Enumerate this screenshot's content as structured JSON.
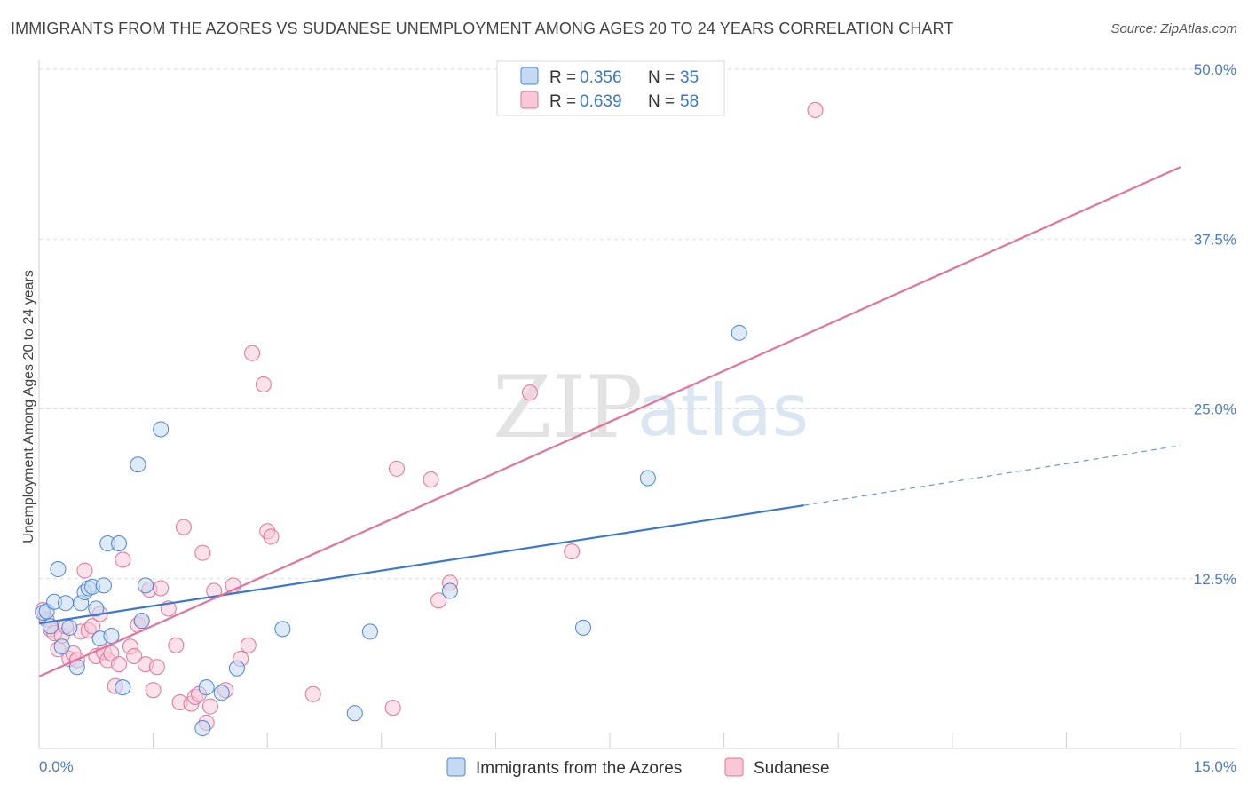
{
  "title": "IMMIGRANTS FROM THE AZORES VS SUDANESE UNEMPLOYMENT AMONG AGES 20 TO 24 YEARS CORRELATION CHART",
  "source": "Source: ZipAtlas.com",
  "colors": {
    "blue": "#4a86d9",
    "blue_fill": "#c5d9f3",
    "pink": "#e5729a",
    "pink_fill": "#f8c8d7",
    "tick_text": "#4a7cc7"
  },
  "watermark": {
    "zip": "ZIP",
    "atlas": "atlas"
  },
  "legend": {
    "r_label": "R =",
    "n_label": "N =",
    "rows": [
      {
        "r": "0.356",
        "n": "35"
      },
      {
        "r": "0.639",
        "n": "58"
      }
    ]
  },
  "bottom_legend": [
    "Immigrants from the Azores",
    "Sudanese"
  ],
  "chart_data": {
    "type": "scatter",
    "title": "IMMIGRANTS FROM THE AZORES VS SUDANESE UNEMPLOYMENT AMONG AGES 20 TO 24 YEARS CORRELATION CHART",
    "xlabel": "",
    "ylabel": "Unemployment Among Ages 20 to 24 years",
    "xlim": [
      0,
      15
    ],
    "ylim": [
      0,
      50
    ],
    "x_tick_labels": [
      "0.0%",
      "15.0%"
    ],
    "y_ticks": [
      12.5,
      25,
      37.5,
      50
    ],
    "y_tick_labels": [
      "12.5%",
      "25.0%",
      "37.5%",
      "50.0%"
    ],
    "grid": true,
    "series": [
      {
        "name": "Immigrants from the Azores",
        "r": 0.356,
        "n": 35,
        "trend": {
          "x0": 0,
          "y0": 9.2,
          "x1": 10.05,
          "y1": 17.9,
          "dash_to_x": 15,
          "dash_to_y": 22.3
        },
        "points": [
          [
            0.05,
            10.0
          ],
          [
            0.1,
            10.1
          ],
          [
            0.15,
            9.0
          ],
          [
            0.2,
            10.8
          ],
          [
            0.25,
            13.2
          ],
          [
            0.3,
            7.5
          ],
          [
            0.35,
            10.7
          ],
          [
            0.4,
            8.9
          ],
          [
            0.5,
            6.0
          ],
          [
            0.55,
            10.7
          ],
          [
            0.6,
            11.5
          ],
          [
            0.65,
            11.8
          ],
          [
            0.7,
            11.9
          ],
          [
            0.75,
            10.3
          ],
          [
            0.8,
            8.1
          ],
          [
            0.85,
            12.0
          ],
          [
            0.9,
            15.1
          ],
          [
            0.95,
            8.3
          ],
          [
            1.05,
            15.1
          ],
          [
            1.1,
            4.5
          ],
          [
            1.3,
            20.9
          ],
          [
            1.35,
            9.4
          ],
          [
            1.4,
            12.0
          ],
          [
            1.6,
            23.5
          ],
          [
            2.15,
            1.5
          ],
          [
            2.2,
            4.5
          ],
          [
            2.4,
            4.1
          ],
          [
            2.6,
            5.9
          ],
          [
            3.2,
            8.8
          ],
          [
            4.15,
            2.6
          ],
          [
            4.35,
            8.6
          ],
          [
            5.4,
            11.6
          ],
          [
            7.15,
            8.9
          ],
          [
            8.0,
            19.9
          ],
          [
            9.2,
            30.6
          ]
        ]
      },
      {
        "name": "Sudanese",
        "r": 0.639,
        "n": 58,
        "trend": {
          "x0": 0,
          "y0": 5.3,
          "x1": 15,
          "y1": 42.8
        },
        "points": [
          [
            0.05,
            10.2
          ],
          [
            0.1,
            9.5
          ],
          [
            0.15,
            8.8
          ],
          [
            0.2,
            8.5
          ],
          [
            0.25,
            7.3
          ],
          [
            0.3,
            8.3
          ],
          [
            0.35,
            9.0
          ],
          [
            0.4,
            6.6
          ],
          [
            0.45,
            7.0
          ],
          [
            0.5,
            6.5
          ],
          [
            0.55,
            8.6
          ],
          [
            0.6,
            13.1
          ],
          [
            0.65,
            8.7
          ],
          [
            0.7,
            9.0
          ],
          [
            0.75,
            6.8
          ],
          [
            0.8,
            9.9
          ],
          [
            0.85,
            7.1
          ],
          [
            0.9,
            6.5
          ],
          [
            0.95,
            7.0
          ],
          [
            1.0,
            4.6
          ],
          [
            1.05,
            6.2
          ],
          [
            1.1,
            13.9
          ],
          [
            1.2,
            7.5
          ],
          [
            1.25,
            6.8
          ],
          [
            1.3,
            9.1
          ],
          [
            1.35,
            9.4
          ],
          [
            1.4,
            6.2
          ],
          [
            1.45,
            11.7
          ],
          [
            1.5,
            4.3
          ],
          [
            1.55,
            6.0
          ],
          [
            1.6,
            11.8
          ],
          [
            1.7,
            10.3
          ],
          [
            1.8,
            7.6
          ],
          [
            1.85,
            3.4
          ],
          [
            1.9,
            16.3
          ],
          [
            2.0,
            3.3
          ],
          [
            2.05,
            3.8
          ],
          [
            2.1,
            4.0
          ],
          [
            2.15,
            14.4
          ],
          [
            2.2,
            1.9
          ],
          [
            2.25,
            3.1
          ],
          [
            2.3,
            11.6
          ],
          [
            2.45,
            4.3
          ],
          [
            2.55,
            12.0
          ],
          [
            2.65,
            6.6
          ],
          [
            2.75,
            7.6
          ],
          [
            2.8,
            29.1
          ],
          [
            2.95,
            26.8
          ],
          [
            3.0,
            16.0
          ],
          [
            3.05,
            15.6
          ],
          [
            3.6,
            4.0
          ],
          [
            4.65,
            3.0
          ],
          [
            4.7,
            20.6
          ],
          [
            5.15,
            19.8
          ],
          [
            5.25,
            10.9
          ],
          [
            5.4,
            12.2
          ],
          [
            6.45,
            26.2
          ],
          [
            7.0,
            14.5
          ],
          [
            10.2,
            47.0
          ]
        ]
      }
    ]
  }
}
